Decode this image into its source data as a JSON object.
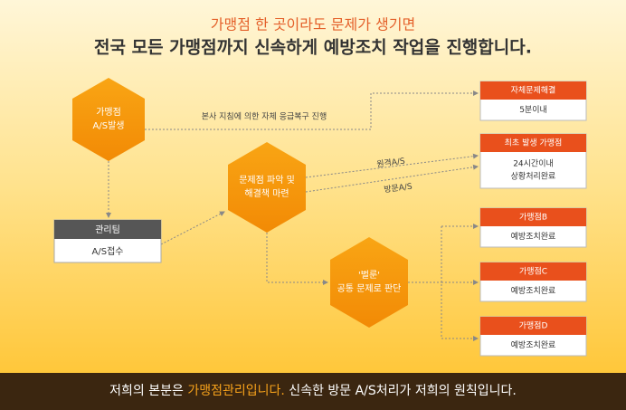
{
  "header": {
    "subtitle": "가맹점 한 곳이라도 문제가 생기면",
    "title": "전국 모든 가맹점까지 신속하게 예방조치 작업을 진행합니다."
  },
  "nodes": [
    {
      "lines": [
        "가맹점",
        "A/S발생"
      ]
    },
    {
      "lines": [
        "문제점 파악 및",
        "해결책 마련"
      ]
    },
    {
      "lines": [
        "'벌룬'",
        "공통 문제로 판단"
      ]
    }
  ],
  "team_box": {
    "title": "관리팀",
    "body": "A/S접수"
  },
  "outcomes": [
    {
      "title": "자체문제해결",
      "body": [
        "5분이내"
      ]
    },
    {
      "title": "최초 발생 가맹점",
      "body": [
        "24시간이내",
        "상황처리완료"
      ]
    },
    {
      "title": "가맹점B",
      "body": [
        "예방조치완료"
      ]
    },
    {
      "title": "가맹점C",
      "body": [
        "예방조치완료"
      ]
    },
    {
      "title": "가맹점D",
      "body": [
        "예방조치완료"
      ]
    }
  ],
  "edge_labels": [
    "본사 지침에 의한 자체 응급복구 진행",
    "원격A/S",
    "방문A/S"
  ],
  "footer": {
    "parts": [
      "저희의 본분은 ",
      "가맹점관리입니다.",
      " 신속한 방문 A/S처리가 저희의 원칙입니다."
    ]
  }
}
